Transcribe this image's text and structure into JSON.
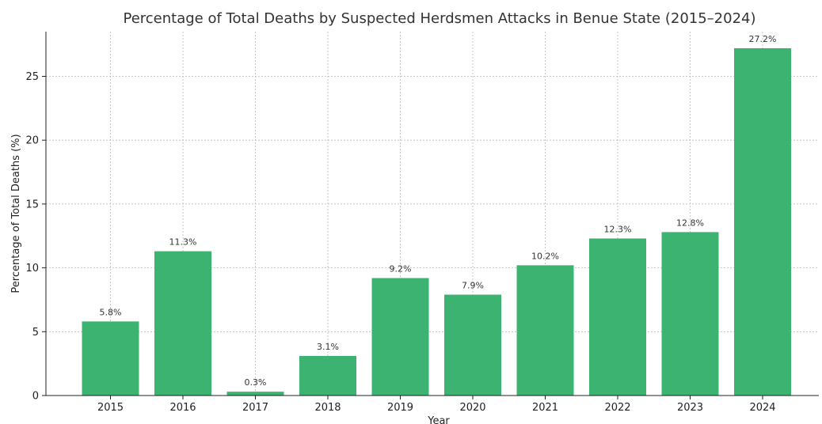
{
  "chart_data": {
    "type": "bar",
    "title": "Percentage of Total Deaths by Suspected Herdsmen Attacks in Benue State (2015–2024)",
    "xlabel": "Year",
    "ylabel": "Percentage of Total Deaths (%)",
    "categories": [
      "2015",
      "2016",
      "2017",
      "2018",
      "2019",
      "2020",
      "2021",
      "2022",
      "2023",
      "2024"
    ],
    "values": [
      5.8,
      11.3,
      0.3,
      3.1,
      9.2,
      7.9,
      10.2,
      12.3,
      12.8,
      27.2
    ],
    "data_labels": [
      "5.8%",
      "11.3%",
      "0.3%",
      "3.1%",
      "9.2%",
      "7.9%",
      "10.2%",
      "12.3%",
      "12.8%",
      "27.2%"
    ],
    "ylim": [
      0,
      28.5
    ],
    "yticks": [
      0,
      5,
      10,
      15,
      20,
      25
    ],
    "grid": true,
    "bar_color": "#3cb371"
  }
}
